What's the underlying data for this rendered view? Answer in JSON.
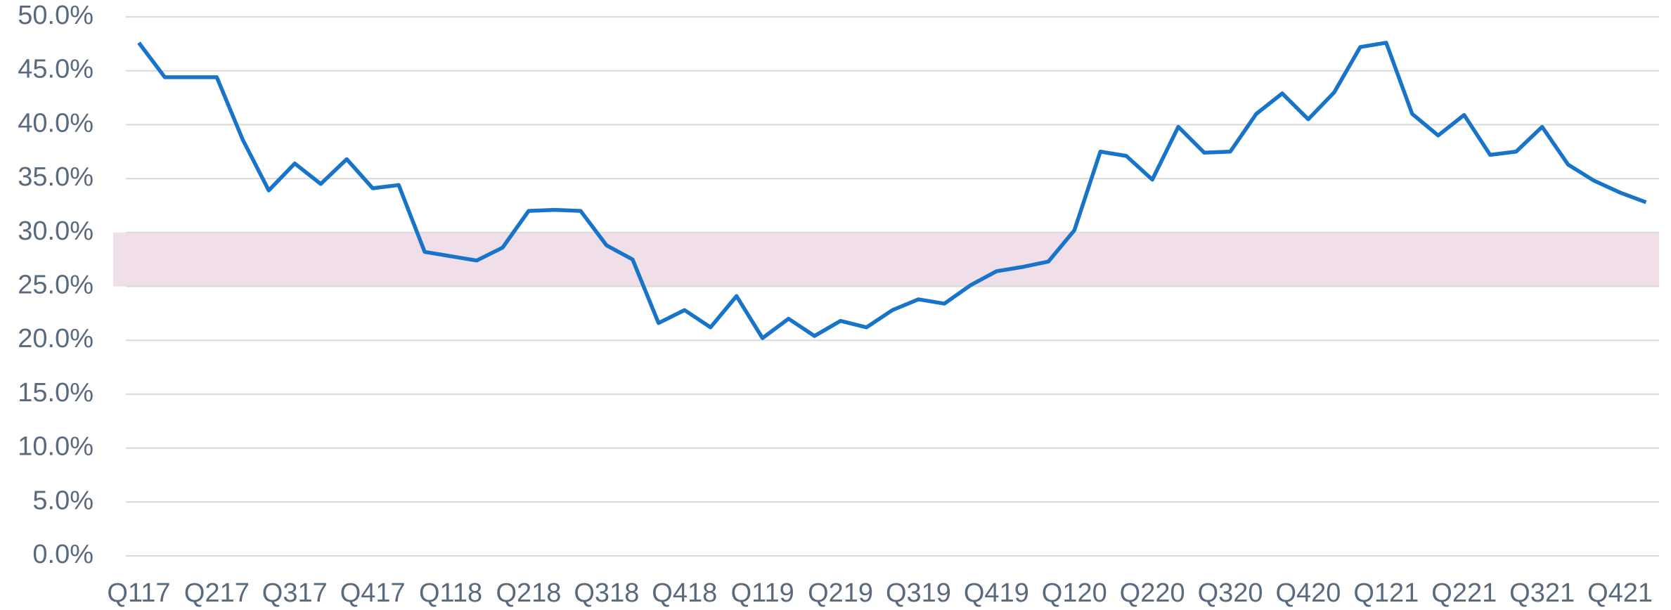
{
  "chart_data": {
    "type": "line",
    "categories": [
      "Q117",
      null,
      null,
      "Q217",
      null,
      null,
      "Q317",
      null,
      null,
      "Q417",
      null,
      null,
      "Q118",
      null,
      null,
      "Q218",
      null,
      null,
      "Q318",
      null,
      null,
      "Q418",
      null,
      null,
      "Q119",
      null,
      null,
      "Q219",
      null,
      null,
      "Q319",
      null,
      null,
      "Q419",
      null,
      null,
      "Q120",
      null,
      null,
      "Q220",
      null,
      null,
      "Q320",
      null,
      null,
      "Q420",
      null,
      null,
      "Q121",
      null,
      null,
      "Q221",
      null,
      null,
      "Q321",
      null,
      null,
      "Q421",
      null
    ],
    "series": [
      {
        "color": "#1874c9",
        "values": [
          47.6,
          44.4,
          44.4,
          44.4,
          38.6,
          33.9,
          36.4,
          34.5,
          36.8,
          34.1,
          34.4,
          28.2,
          27.8,
          27.4,
          28.6,
          32.0,
          32.1,
          32.0,
          28.8,
          27.5,
          21.6,
          22.8,
          21.2,
          24.1,
          20.2,
          22.0,
          20.4,
          21.8,
          21.2,
          22.8,
          23.8,
          23.4,
          25.1,
          26.4,
          26.8,
          27.3,
          30.2,
          37.5,
          37.1,
          34.9,
          39.8,
          37.4,
          37.5,
          41.0,
          42.9,
          40.5,
          43.0,
          47.2,
          47.6,
          41.0,
          39.0,
          40.9,
          37.2,
          37.5,
          39.8,
          36.3,
          34.8,
          33.7,
          32.8
        ]
      }
    ],
    "band": {
      "range": [
        25,
        30
      ],
      "color": "#f0dfe8"
    },
    "ylim": [
      0,
      50
    ],
    "yticks": [
      {
        "value": 0,
        "label": "0.0%"
      },
      {
        "value": 5,
        "label": "5.0%"
      },
      {
        "value": 10,
        "label": "10.0%"
      },
      {
        "value": 15,
        "label": "15.0%"
      },
      {
        "value": 20,
        "label": "20.0%"
      },
      {
        "value": 25,
        "label": "25.0%"
      },
      {
        "value": 30,
        "label": "30.0%"
      },
      {
        "value": 35,
        "label": "35.0%"
      },
      {
        "value": 40,
        "label": "40.0%"
      },
      {
        "value": 45,
        "label": "45.0%"
      },
      {
        "value": 50,
        "label": "50.0%"
      }
    ],
    "grid": true
  }
}
